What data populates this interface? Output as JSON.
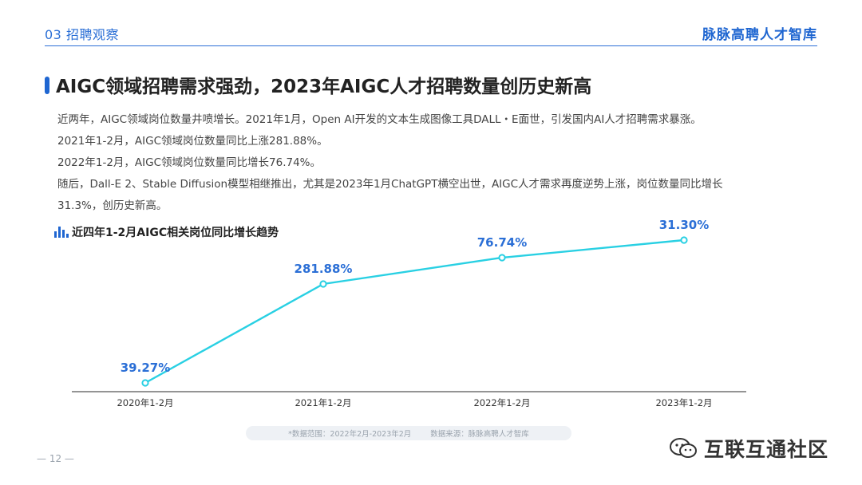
{
  "header": {
    "section_label": "03 招聘观察",
    "brand": "脉脉高聘人才智库"
  },
  "page_title": "AIGC领域招聘需求强劲，2023年AIGC人才招聘数量创历史新高",
  "body_lines": [
    "近两年，AIGC领域岗位数量井喷增长。2021年1月，Open AI开发的文本生成图像工具DALL・E面世，引发国内AI人才招聘需求暴涨。",
    "2021年1-2月，AIGC领域岗位数量同比上涨281.88%。",
    "2022年1-2月，AIGC领域岗位数量同比增长76.74%。",
    "随后，Dall-E 2、Stable Diffusion模型相继推出，尤其是2023年1月ChatGPT横空出世，AIGC人才需求再度逆势上涨，岗位数量同比增长",
    "31.3%，创历史新高。"
  ],
  "chart_title": "近四年1-2月AIGC相关岗位同比增长趋势",
  "chart_data": {
    "type": "line",
    "title": "近四年1-2月AIGC相关岗位同比增长趋势",
    "categories": [
      "2020年1-2月",
      "2021年1-2月",
      "2022年1-2月",
      "2023年1-2月"
    ],
    "series": [
      {
        "values": [
          39.27,
          281.88,
          76.74,
          31.3
        ]
      }
    ],
    "data_labels": [
      "39.27%",
      "281.88%",
      "76.74%",
      "31.30%"
    ],
    "xlabel": "",
    "ylabel": "",
    "grid": false,
    "legend": "none",
    "colors": {
      "line": "#29d0e3",
      "label": "#2b6fd6",
      "axis": "#555555"
    }
  },
  "footer": {
    "range": "*数据范围：2022年2月-2023年2月",
    "source": "数据来源：脉脉高聘人才智库"
  },
  "page_number": "— 12 —",
  "watermark": "互联互通社区",
  "colors": {
    "accent": "#1f66d1",
    "text": "#333333"
  }
}
